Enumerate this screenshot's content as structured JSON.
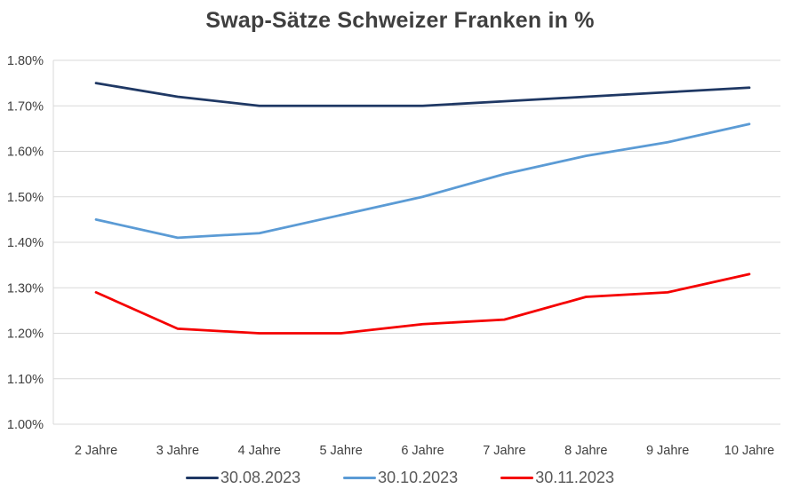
{
  "chart_data": {
    "type": "line",
    "title": "Swap-Sätze Schweizer Franken in %",
    "categories": [
      "2 Jahre",
      "3 Jahre",
      "4 Jahre",
      "5 Jahre",
      "6 Jahre",
      "7 Jahre",
      "8 Jahre",
      "9 Jahre",
      "10 Jahre"
    ],
    "series": [
      {
        "name": "30.08.2023",
        "color": "#1f3864",
        "values": [
          1.75,
          1.72,
          1.7,
          1.7,
          1.7,
          1.71,
          1.72,
          1.73,
          1.74
        ]
      },
      {
        "name": "30.10.2023",
        "color": "#5b9bd5",
        "values": [
          1.45,
          1.41,
          1.42,
          1.46,
          1.5,
          1.55,
          1.59,
          1.62,
          1.66
        ]
      },
      {
        "name": "30.11.2023",
        "color": "#f50000",
        "values": [
          1.29,
          1.21,
          1.2,
          1.2,
          1.22,
          1.23,
          1.28,
          1.29,
          1.33
        ]
      }
    ],
    "xlabel": "",
    "ylabel": "",
    "ylim": [
      1.0,
      1.8
    ],
    "ytick_values": [
      1.0,
      1.1,
      1.2,
      1.3,
      1.4,
      1.5,
      1.6,
      1.7,
      1.8
    ],
    "ytick_labels": [
      "1.00%",
      "1.10%",
      "1.20%",
      "1.30%",
      "1.40%",
      "1.50%",
      "1.60%",
      "1.70%",
      "1.80%"
    ],
    "grid": true,
    "legend_position": "bottom",
    "gridline_color": "#d9d9d9",
    "axis_text_color": "#404040",
    "title_color": "#3f3f3f",
    "legend_text_color": "#595959",
    "background_color": "#ffffff"
  }
}
